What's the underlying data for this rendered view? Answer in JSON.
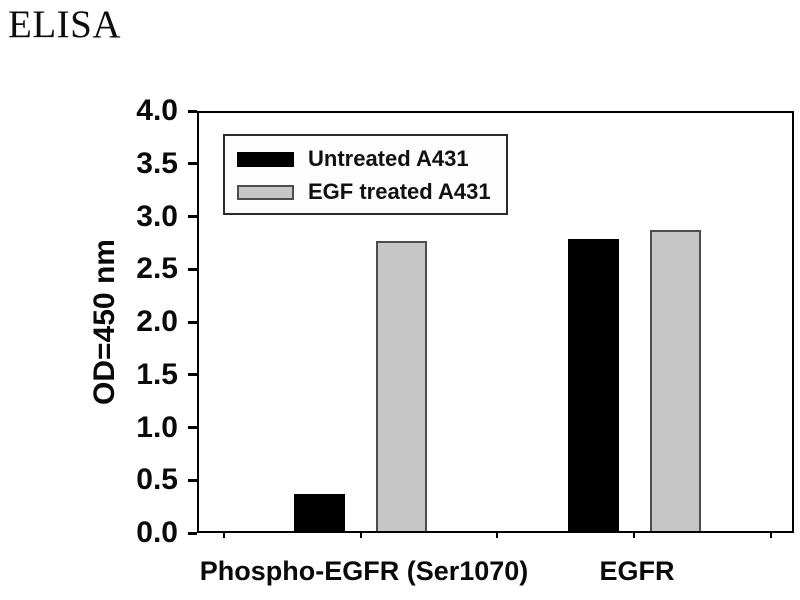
{
  "page": {
    "title": "ELISA"
  },
  "chart_data": {
    "type": "bar",
    "title": "ELISA",
    "categories": [
      "Phospho-EGFR (Ser1070)",
      "EGFR"
    ],
    "series": [
      {
        "name": "Untreated A431",
        "color": "#000000",
        "border_color": "#000000",
        "values": [
          0.37,
          2.79
        ]
      },
      {
        "name": "EGF treated A431",
        "color": "#c6c6c6",
        "border_color": "#4d4d4d",
        "values": [
          2.77,
          2.87
        ]
      }
    ],
    "xlabel": "",
    "ylabel": "OD=450 nm",
    "ylim": [
      0,
      4
    ],
    "ytick_step": 0.5,
    "yticks": [
      "0.0",
      "0.5",
      "1.0",
      "1.5",
      "2.0",
      "2.5",
      "3.0",
      "3.5",
      "4.0"
    ],
    "grid": false,
    "legend_position": "upper-left",
    "axis_color": "#000000",
    "background": "#ffffff"
  }
}
